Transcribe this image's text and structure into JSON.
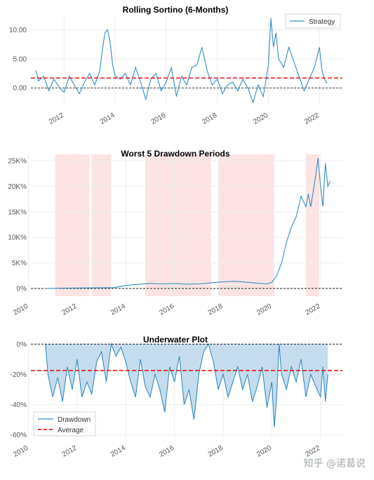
{
  "colors": {
    "strategy": "#348dc1",
    "average": "#e8141a",
    "drawdown_fill": "#c4dced",
    "highlight": "#fde3e3",
    "grid": "#ececec",
    "zero": "#000000"
  },
  "watermark": "知乎 @诺葛说",
  "chart_data": [
    {
      "type": "line",
      "title": "Rolling Sortino (6-Months)",
      "x_ticks": [
        "2012",
        "2014",
        "2016",
        "2018",
        "2020",
        "2022"
      ],
      "x_tick_years": [
        2012,
        2014,
        2016,
        2018,
        2020,
        2022
      ],
      "xlim": [
        2010.7,
        2022.9
      ],
      "y_ticks": [
        "0.00",
        "5.00",
        "10.00"
      ],
      "y_tick_values": [
        0,
        5,
        10
      ],
      "ylim": [
        -3,
        12.5
      ],
      "average": 1.7,
      "legend": [
        "Strategy"
      ],
      "legend_position": "top-right",
      "series": [
        {
          "name": "Strategy",
          "x": [
            2010.9,
            2011.0,
            2011.2,
            2011.4,
            2011.6,
            2011.8,
            2012.0,
            2012.2,
            2012.4,
            2012.6,
            2012.8,
            2013.0,
            2013.2,
            2013.4,
            2013.5,
            2013.6,
            2013.7,
            2013.8,
            2013.9,
            2014.0,
            2014.2,
            2014.4,
            2014.6,
            2014.8,
            2015.0,
            2015.2,
            2015.4,
            2015.6,
            2015.8,
            2016.0,
            2016.2,
            2016.4,
            2016.6,
            2016.8,
            2017.0,
            2017.2,
            2017.4,
            2017.6,
            2017.8,
            2018.0,
            2018.2,
            2018.4,
            2018.6,
            2018.8,
            2019.0,
            2019.2,
            2019.4,
            2019.6,
            2019.8,
            2020.0,
            2020.1,
            2020.2,
            2020.3,
            2020.4,
            2020.6,
            2020.8,
            2021.0,
            2021.2,
            2021.4,
            2021.6,
            2021.8,
            2022.0,
            2022.1,
            2022.2,
            2022.3
          ],
          "values": [
            3.0,
            1.2,
            2.0,
            -0.5,
            1.5,
            0.2,
            -0.8,
            2.0,
            0.5,
            -1.0,
            1.0,
            2.5,
            0.5,
            3.0,
            6.5,
            9.5,
            10.0,
            8.0,
            4.0,
            2.0,
            1.5,
            2.5,
            0.5,
            3.5,
            1.0,
            -2.0,
            1.5,
            2.5,
            -0.5,
            1.0,
            3.5,
            -1.5,
            2.0,
            0.5,
            3.5,
            4.0,
            7.0,
            3.0,
            0.5,
            1.5,
            -1.0,
            0.5,
            1.0,
            -0.5,
            1.5,
            0.0,
            -2.5,
            0.5,
            -1.5,
            4.0,
            12.0,
            7.0,
            9.5,
            5.0,
            3.5,
            7.0,
            4.5,
            2.0,
            -0.5,
            1.5,
            3.5,
            7.0,
            3.0,
            1.5,
            0.8
          ]
        }
      ]
    },
    {
      "type": "line",
      "title": "Worst 5 Drawdown Periods",
      "x_ticks": [
        "2010",
        "2012",
        "2014",
        "2016",
        "2018",
        "2020",
        "2022"
      ],
      "x_tick_years": [
        2010,
        2012,
        2014,
        2016,
        2018,
        2020,
        2022
      ],
      "xlim": [
        2010.1,
        2022.9
      ],
      "y_ticks": [
        "0%",
        "5K%",
        "10K%",
        "15K%",
        "20K%",
        "25K%"
      ],
      "y_tick_values": [
        0,
        5000,
        10000,
        15000,
        20000,
        25000
      ],
      "ylim": [
        -1500,
        26500
      ],
      "drawdown_periods": [
        [
          2011.1,
          2012.5
        ],
        [
          2012.6,
          2013.4
        ],
        [
          2014.8,
          2017.5
        ],
        [
          2017.8,
          2020.1
        ],
        [
          2021.4,
          2021.95
        ]
      ],
      "series": [
        {
          "name": "Strategy",
          "x": [
            2010.7,
            2011.0,
            2011.5,
            2012.0,
            2012.5,
            2013.0,
            2013.5,
            2013.8,
            2014.0,
            2014.5,
            2015.0,
            2015.5,
            2016.0,
            2016.5,
            2017.0,
            2017.5,
            2018.0,
            2018.5,
            2019.0,
            2019.5,
            2019.8,
            2020.0,
            2020.2,
            2020.4,
            2020.6,
            2020.8,
            2021.0,
            2021.2,
            2021.4,
            2021.5,
            2021.6,
            2021.7,
            2021.8,
            2021.9,
            2022.0,
            2022.1,
            2022.2,
            2022.3,
            2022.4
          ],
          "values": [
            0,
            30,
            60,
            90,
            120,
            140,
            180,
            400,
            600,
            800,
            1000,
            900,
            950,
            850,
            900,
            1100,
            1300,
            1400,
            1200,
            1000,
            900,
            1200,
            2500,
            5000,
            9000,
            12000,
            14000,
            18000,
            16000,
            18500,
            16000,
            19000,
            22000,
            25500,
            20000,
            16000,
            24500,
            20000,
            21000
          ]
        }
      ]
    },
    {
      "type": "area",
      "title": "Underwater Plot",
      "x_ticks": [
        "2010",
        "2012",
        "2014",
        "2016",
        "2018",
        "2020",
        "2022"
      ],
      "x_tick_years": [
        2010,
        2012,
        2014,
        2016,
        2018,
        2020,
        2022
      ],
      "xlim": [
        2010.1,
        2022.9
      ],
      "y_ticks": [
        "0%",
        "-20%",
        "-40%",
        "-60%"
      ],
      "y_tick_values": [
        0,
        -20,
        -40,
        -60
      ],
      "ylim": [
        -62,
        2
      ],
      "average": -17.5,
      "legend": [
        "Drawdown",
        "Average"
      ],
      "legend_position": "bottom-left",
      "series": [
        {
          "name": "Drawdown",
          "x": [
            2010.7,
            2010.8,
            2011.0,
            2011.2,
            2011.4,
            2011.6,
            2011.8,
            2012.0,
            2012.2,
            2012.4,
            2012.6,
            2012.8,
            2013.0,
            2013.2,
            2013.4,
            2013.6,
            2013.8,
            2014.0,
            2014.2,
            2014.4,
            2014.6,
            2014.8,
            2015.0,
            2015.2,
            2015.4,
            2015.6,
            2015.8,
            2016.0,
            2016.2,
            2016.4,
            2016.6,
            2016.8,
            2017.0,
            2017.2,
            2017.4,
            2017.6,
            2017.8,
            2018.0,
            2018.2,
            2018.4,
            2018.6,
            2018.8,
            2019.0,
            2019.2,
            2019.4,
            2019.6,
            2019.8,
            2020.0,
            2020.1,
            2020.2,
            2020.3,
            2020.4,
            2020.6,
            2020.8,
            2021.0,
            2021.2,
            2021.4,
            2021.6,
            2021.8,
            2022.0,
            2022.1,
            2022.2,
            2022.3
          ],
          "values": [
            0,
            -20,
            -35,
            -22,
            -38,
            -15,
            -30,
            -10,
            -35,
            -25,
            -33,
            -12,
            -5,
            -25,
            0,
            -8,
            -2,
            -12,
            -25,
            -35,
            -10,
            -28,
            -35,
            -20,
            -30,
            -45,
            -15,
            -25,
            -8,
            -40,
            -30,
            -50,
            -20,
            -5,
            0,
            -12,
            -30,
            -20,
            -35,
            -25,
            -15,
            -30,
            -20,
            -38,
            -28,
            -15,
            -42,
            -25,
            -55,
            -35,
            0,
            -20,
            -30,
            -15,
            -25,
            -10,
            -35,
            -20,
            -28,
            -35,
            -15,
            -38,
            -20
          ]
        }
      ]
    }
  ]
}
